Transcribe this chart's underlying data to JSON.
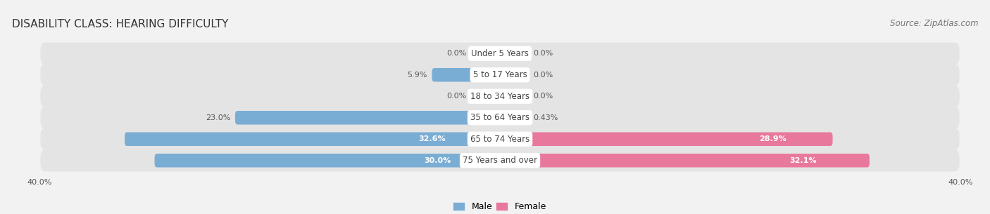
{
  "title": "DISABILITY CLASS: HEARING DIFFICULTY",
  "source": "Source: ZipAtlas.com",
  "categories": [
    "Under 5 Years",
    "5 to 17 Years",
    "18 to 34 Years",
    "35 to 64 Years",
    "65 to 74 Years",
    "75 Years and over"
  ],
  "male_values": [
    0.0,
    5.9,
    0.0,
    23.0,
    32.6,
    30.0
  ],
  "female_values": [
    0.0,
    0.0,
    0.0,
    0.43,
    28.9,
    32.1
  ],
  "male_color": "#7aadd4",
  "female_color": "#e8799c",
  "male_label": "Male",
  "female_label": "Female",
  "xlim": 40.0,
  "bg_color": "#f2f2f2",
  "row_bg_color": "#e4e4e4",
  "title_fontsize": 11,
  "source_fontsize": 8.5,
  "label_fontsize": 8,
  "value_fontsize": 8,
  "tick_fontsize": 8,
  "bar_height": 0.62,
  "min_stub": 2.5,
  "cat_label_fontsize": 8.5
}
